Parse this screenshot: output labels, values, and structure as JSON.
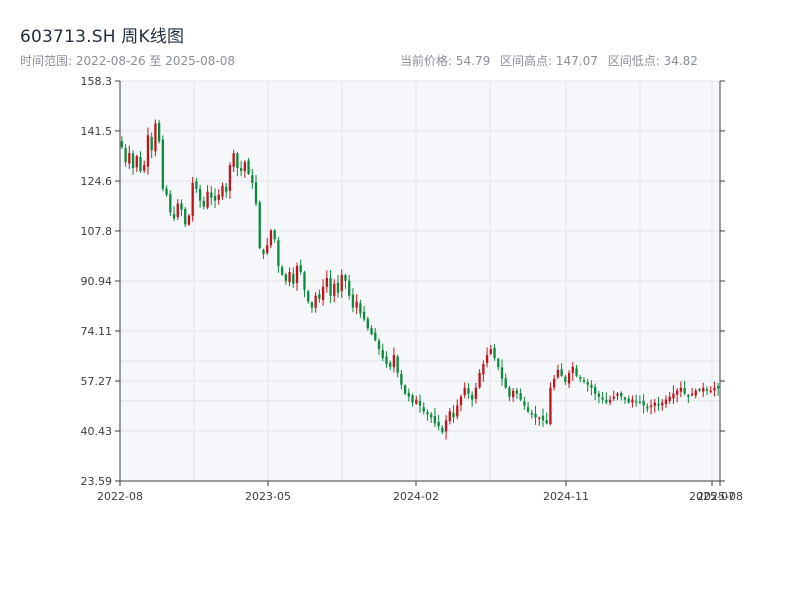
{
  "header": {
    "title": "603713.SH 周K线图",
    "subtitle": "时间范围: 2022-08-26 至 2025-08-08",
    "stat_current": "当前价格: 54.79",
    "stat_high": "区间高点: 147.07",
    "stat_low": "区间低点: 34.82"
  },
  "colors": {
    "up": "#c0141a",
    "down": "#0a8a3a",
    "grid": "#e2e5ea",
    "plot_bg": "#f6f7fa",
    "axis": "#3a3f46"
  },
  "chart_data": {
    "type": "candlestick",
    "title": "603713.SH 周K线图",
    "x_range": [
      "2022-08-26",
      "2025-08-08"
    ],
    "ylim": [
      23.59,
      158.3
    ],
    "y_ticks": [
      23.59,
      40.43,
      57.27,
      74.11,
      90.94,
      107.8,
      124.6,
      141.5,
      158.3
    ],
    "y_tick_labels": [
      "23.59",
      "40.43",
      "57.27",
      "74.11",
      "90.94",
      "107.8",
      "124.6",
      "141.5",
      "158.3"
    ],
    "x_ticks": [
      "2022-08",
      "2023-05",
      "2024-02",
      "2024-11",
      "2025-07",
      "2025-08"
    ],
    "grid": true,
    "closes": [
      136,
      131,
      134,
      129,
      133,
      128,
      130,
      140,
      135,
      144,
      138,
      122,
      120,
      114,
      112,
      117,
      115,
      110,
      113,
      124,
      122,
      118,
      116,
      121,
      119,
      118,
      120,
      123,
      121,
      130,
      134,
      129,
      128,
      131,
      127,
      124,
      117,
      102,
      100,
      103,
      108,
      105,
      96,
      93,
      91,
      94,
      90,
      96,
      94,
      88,
      84,
      82,
      86,
      85,
      89,
      92,
      86,
      90,
      87,
      93,
      91,
      86,
      82,
      84,
      80,
      78,
      75,
      73,
      71,
      68,
      65,
      63,
      62,
      66,
      60,
      56,
      53,
      52,
      50,
      51,
      49,
      47,
      46,
      45,
      43,
      42,
      40,
      44,
      47,
      45,
      49,
      52,
      55,
      53,
      51,
      55,
      60,
      63,
      66,
      68,
      65,
      62,
      58,
      55,
      52,
      54,
      53,
      51,
      49,
      47,
      46,
      45,
      45,
      44,
      43,
      55,
      58,
      61,
      59,
      57,
      60,
      62,
      59,
      58,
      57,
      56,
      55,
      53,
      52,
      51,
      50,
      51,
      52,
      53,
      52,
      51,
      50,
      51,
      50,
      50,
      49,
      48,
      49,
      50,
      49,
      50,
      51,
      52,
      53,
      54,
      55,
      53,
      52,
      53,
      54,
      54,
      55,
      54,
      54,
      55,
      54.79
    ],
    "series_high": 147.07,
    "series_low": 34.82,
    "last_close": 54.79
  }
}
